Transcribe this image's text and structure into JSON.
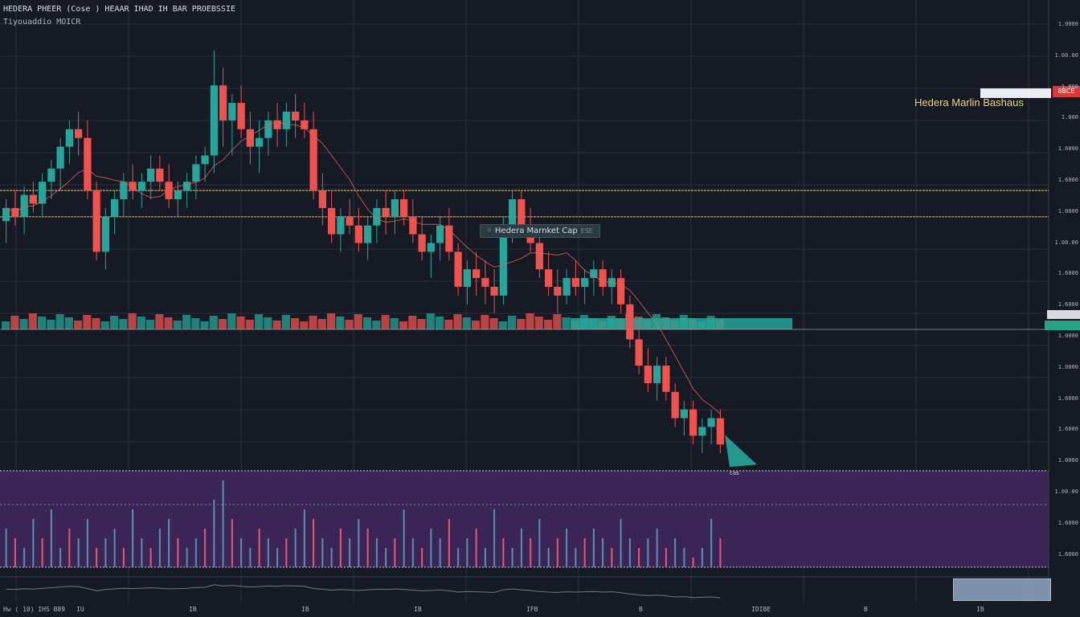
{
  "header": {
    "title": "HEDERA PHEER (Cose ) HEAAR IHAD IH BAR PROEBSSIE",
    "subtitle": "Tiyouaddio MOICR"
  },
  "labels": {
    "mid_tag": "Hedera Marnket Cap",
    "mid_tag_ext": "ESE",
    "right_tag": "Hedera Marlin Bashaus",
    "price_box": "8BCE",
    "below_price": "cas",
    "footer_left": "Hw ( 10) IHS B89"
  },
  "colors": {
    "background": "#161a25",
    "up": "#26a69a",
    "down": "#ef5350",
    "level": "#d4a35a",
    "indicator_bg": "#3b2456"
  },
  "axis": {
    "y_labels": [
      "1.0000",
      "1.00.00",
      "1.000",
      "1.000",
      "1.6000",
      "1.6000",
      "1.0000",
      "1.00.00",
      "1.6000",
      "1.6000",
      "1.0000",
      "1.0000",
      "1.6000",
      "1.6000",
      "1.0000",
      "1.00.00",
      "1.6000",
      "1.6000"
    ],
    "x_labels": [
      "IU",
      "IB",
      "IB",
      "IB",
      "IFB",
      "B",
      "IDIBE",
      "B",
      "IB"
    ]
  },
  "chart_data": {
    "type": "candlestick",
    "title": "",
    "xlabel": "",
    "ylabel": "",
    "x_ticks": [
      "IU",
      "IB",
      "IB",
      "IB",
      "IFB",
      "B",
      "IDIBE",
      "B",
      "IB"
    ],
    "y_ticks": [
      "1.0000",
      "1.00.00",
      "1.000",
      "1.000",
      "1.6000",
      "1.6000",
      "1.0000",
      "1.00.00",
      "1.6000",
      "1.6000",
      "1.0000",
      "1.0000",
      "1.6000",
      "1.6000",
      "1.0000",
      "1.00.00",
      "1.6000",
      "1.6000"
    ],
    "grid": true,
    "ylim": [
      0,
      100
    ],
    "candles": [
      [
        55,
        60,
        50,
        58
      ],
      [
        58,
        62,
        54,
        56
      ],
      [
        56,
        63,
        52,
        61
      ],
      [
        61,
        64,
        57,
        59
      ],
      [
        59,
        66,
        56,
        64
      ],
      [
        64,
        69,
        60,
        67
      ],
      [
        67,
        74,
        62,
        72
      ],
      [
        72,
        78,
        68,
        76
      ],
      [
        76,
        80,
        70,
        74
      ],
      [
        74,
        78,
        60,
        62
      ],
      [
        62,
        64,
        46,
        48
      ],
      [
        48,
        58,
        44,
        56
      ],
      [
        56,
        62,
        52,
        60
      ],
      [
        60,
        66,
        56,
        64
      ],
      [
        64,
        68,
        60,
        62
      ],
      [
        62,
        66,
        58,
        64
      ],
      [
        64,
        70,
        60,
        67
      ],
      [
        67,
        70,
        62,
        64
      ],
      [
        64,
        68,
        58,
        60
      ],
      [
        60,
        64,
        56,
        62
      ],
      [
        62,
        66,
        58,
        64
      ],
      [
        64,
        70,
        60,
        68
      ],
      [
        68,
        72,
        64,
        70
      ],
      [
        70,
        94,
        66,
        86
      ],
      [
        86,
        90,
        72,
        78
      ],
      [
        78,
        84,
        70,
        82
      ],
      [
        82,
        86,
        74,
        76
      ],
      [
        76,
        80,
        68,
        72
      ],
      [
        72,
        78,
        66,
        74
      ],
      [
        74,
        80,
        70,
        78
      ],
      [
        78,
        82,
        72,
        76
      ],
      [
        76,
        82,
        72,
        80
      ],
      [
        80,
        84,
        74,
        78
      ],
      [
        78,
        82,
        74,
        76
      ],
      [
        76,
        80,
        60,
        62
      ],
      [
        62,
        66,
        54,
        58
      ],
      [
        58,
        62,
        50,
        52
      ],
      [
        52,
        58,
        48,
        56
      ],
      [
        56,
        60,
        52,
        54
      ],
      [
        54,
        58,
        48,
        50
      ],
      [
        50,
        56,
        46,
        54
      ],
      [
        54,
        60,
        50,
        58
      ],
      [
        58,
        62,
        52,
        56
      ],
      [
        56,
        62,
        52,
        60
      ],
      [
        60,
        62,
        54,
        56
      ],
      [
        56,
        60,
        50,
        52
      ],
      [
        52,
        56,
        46,
        48
      ],
      [
        48,
        52,
        42,
        50
      ],
      [
        50,
        56,
        46,
        54
      ],
      [
        54,
        58,
        46,
        48
      ],
      [
        48,
        50,
        38,
        40
      ],
      [
        40,
        46,
        36,
        44
      ],
      [
        44,
        48,
        38,
        42
      ],
      [
        42,
        46,
        36,
        40
      ],
      [
        40,
        44,
        34,
        38
      ],
      [
        38,
        56,
        36,
        54
      ],
      [
        54,
        62,
        50,
        60
      ],
      [
        60,
        62,
        52,
        54
      ],
      [
        54,
        58,
        48,
        50
      ],
      [
        50,
        54,
        42,
        44
      ],
      [
        44,
        48,
        38,
        40
      ],
      [
        40,
        44,
        34,
        38
      ],
      [
        38,
        44,
        36,
        42
      ],
      [
        42,
        46,
        38,
        40
      ],
      [
        40,
        44,
        36,
        42
      ],
      [
        42,
        46,
        38,
        44
      ],
      [
        44,
        46,
        38,
        40
      ],
      [
        40,
        44,
        36,
        42
      ],
      [
        42,
        44,
        34,
        36
      ],
      [
        36,
        38,
        26,
        28
      ],
      [
        28,
        32,
        20,
        22
      ],
      [
        22,
        26,
        16,
        18
      ],
      [
        18,
        24,
        14,
        22
      ],
      [
        22,
        24,
        14,
        16
      ],
      [
        16,
        18,
        8,
        10
      ],
      [
        10,
        14,
        6,
        12
      ],
      [
        12,
        14,
        4,
        6
      ],
      [
        6,
        10,
        2,
        8
      ],
      [
        8,
        12,
        4,
        10
      ],
      [
        10,
        12,
        2,
        4
      ]
    ],
    "levels": [
      62,
      56
    ],
    "indicator": [
      4,
      3,
      2,
      5,
      3,
      6,
      2,
      4,
      3,
      5,
      2,
      3,
      4,
      2,
      6,
      3,
      2,
      4,
      5,
      3,
      2,
      3,
      4,
      7,
      9,
      5,
      3,
      2,
      4,
      3,
      2,
      3,
      4,
      6,
      5,
      3,
      2,
      4,
      3,
      5,
      4,
      3,
      2,
      3,
      6,
      3,
      2,
      4,
      3,
      5,
      2,
      3,
      4,
      2,
      6,
      3,
      2,
      4,
      3,
      5,
      2,
      3,
      4,
      2,
      3,
      4,
      3,
      2,
      5,
      3,
      2,
      3,
      4,
      2,
      3,
      2,
      1,
      2,
      5,
      3
    ]
  }
}
